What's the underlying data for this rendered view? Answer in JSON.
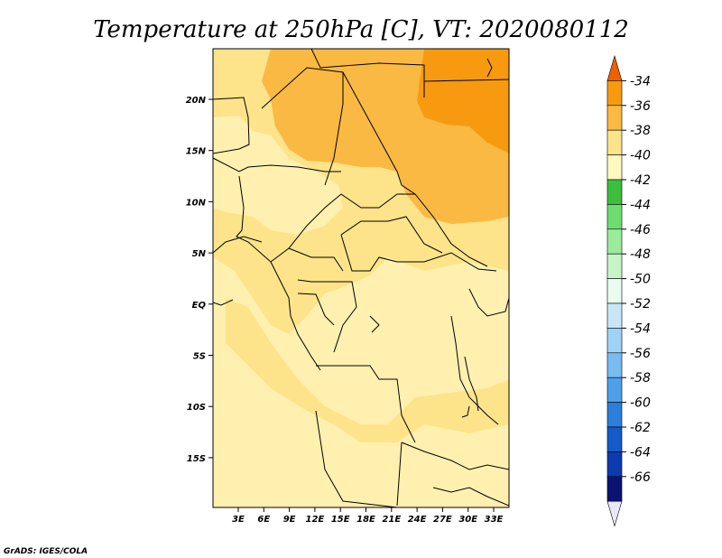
{
  "title": "Temperature at 250hPa [C], VT: 2020080112",
  "credit": "GrADS: IGES/COLA",
  "map": {
    "lat_labels": [
      "20N",
      "15N",
      "10N",
      "5N",
      "EQ",
      "5S",
      "10S",
      "15S"
    ],
    "lon_labels": [
      "3E",
      "6E",
      "9E",
      "12E",
      "15E",
      "18E",
      "21E",
      "24E",
      "27E",
      "30E",
      "33E"
    ],
    "shading_colors": {
      "band_40_42": "#fff0b0",
      "band_38_40": "#fde38a",
      "band_36_38": "#f9b942",
      "band_34_36": "#f79a10"
    }
  },
  "colorbar": {
    "labels": [
      "-34",
      "-36",
      "-38",
      "-40",
      "-42",
      "-44",
      "-46",
      "-48",
      "-50",
      "-52",
      "-54",
      "-56",
      "-58",
      "-60",
      "-62",
      "-64",
      "-66"
    ],
    "colors": [
      "#f06000",
      "#f79a10",
      "#f9b942",
      "#fde38a",
      "#fff8c0",
      "#3cbf3c",
      "#6fdc6f",
      "#9ceb9c",
      "#c8f5c8",
      "#e8fcf0",
      "#c8e6f8",
      "#a0d2f5",
      "#78bcf0",
      "#4ea0ea",
      "#2c7edc",
      "#145ac8",
      "#0a3cb0",
      "#0a1470",
      "#e8e8f8"
    ]
  }
}
